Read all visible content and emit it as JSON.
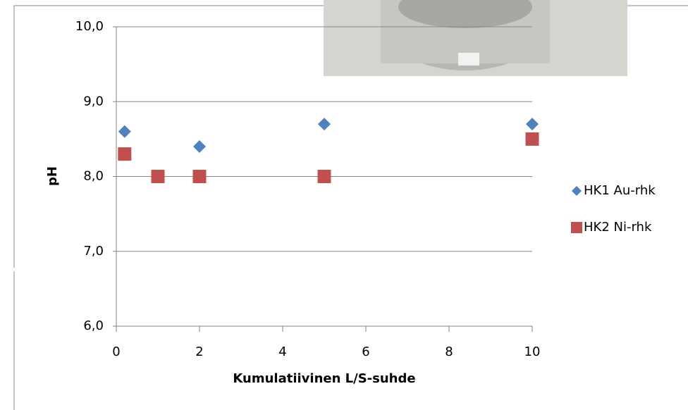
{
  "chart_data": {
    "type": "scatter",
    "x_label": "Kumulatiivinen L/S-suhde",
    "y_label": "pH",
    "xlim": [
      0,
      10
    ],
    "xticks": [
      0,
      2,
      4,
      6,
      8,
      10
    ],
    "ylim": [
      6,
      10
    ],
    "yticks": [
      {
        "value": 6,
        "label": "6,0"
      },
      {
        "value": 7,
        "label": "7,0"
      },
      {
        "value": 8,
        "label": "8,0"
      },
      {
        "value": 9,
        "label": "9,0"
      },
      {
        "value": 10,
        "label": "10,0"
      }
    ],
    "grid": true,
    "legend": "right",
    "series": [
      {
        "name": "HK1 Au-rhk",
        "color": "#4f81bd",
        "marker": "diamond",
        "x": [
          0.2,
          2,
          5,
          10
        ],
        "values": [
          8.6,
          8.4,
          8.7,
          8.7
        ]
      },
      {
        "name": "HK2 Ni-rhk",
        "color": "#c0504d",
        "marker": "square",
        "x": [
          0.2,
          1,
          2,
          5,
          10
        ],
        "values": [
          8.3,
          8.0,
          8.0,
          8.0,
          8.5
        ]
      }
    ]
  }
}
